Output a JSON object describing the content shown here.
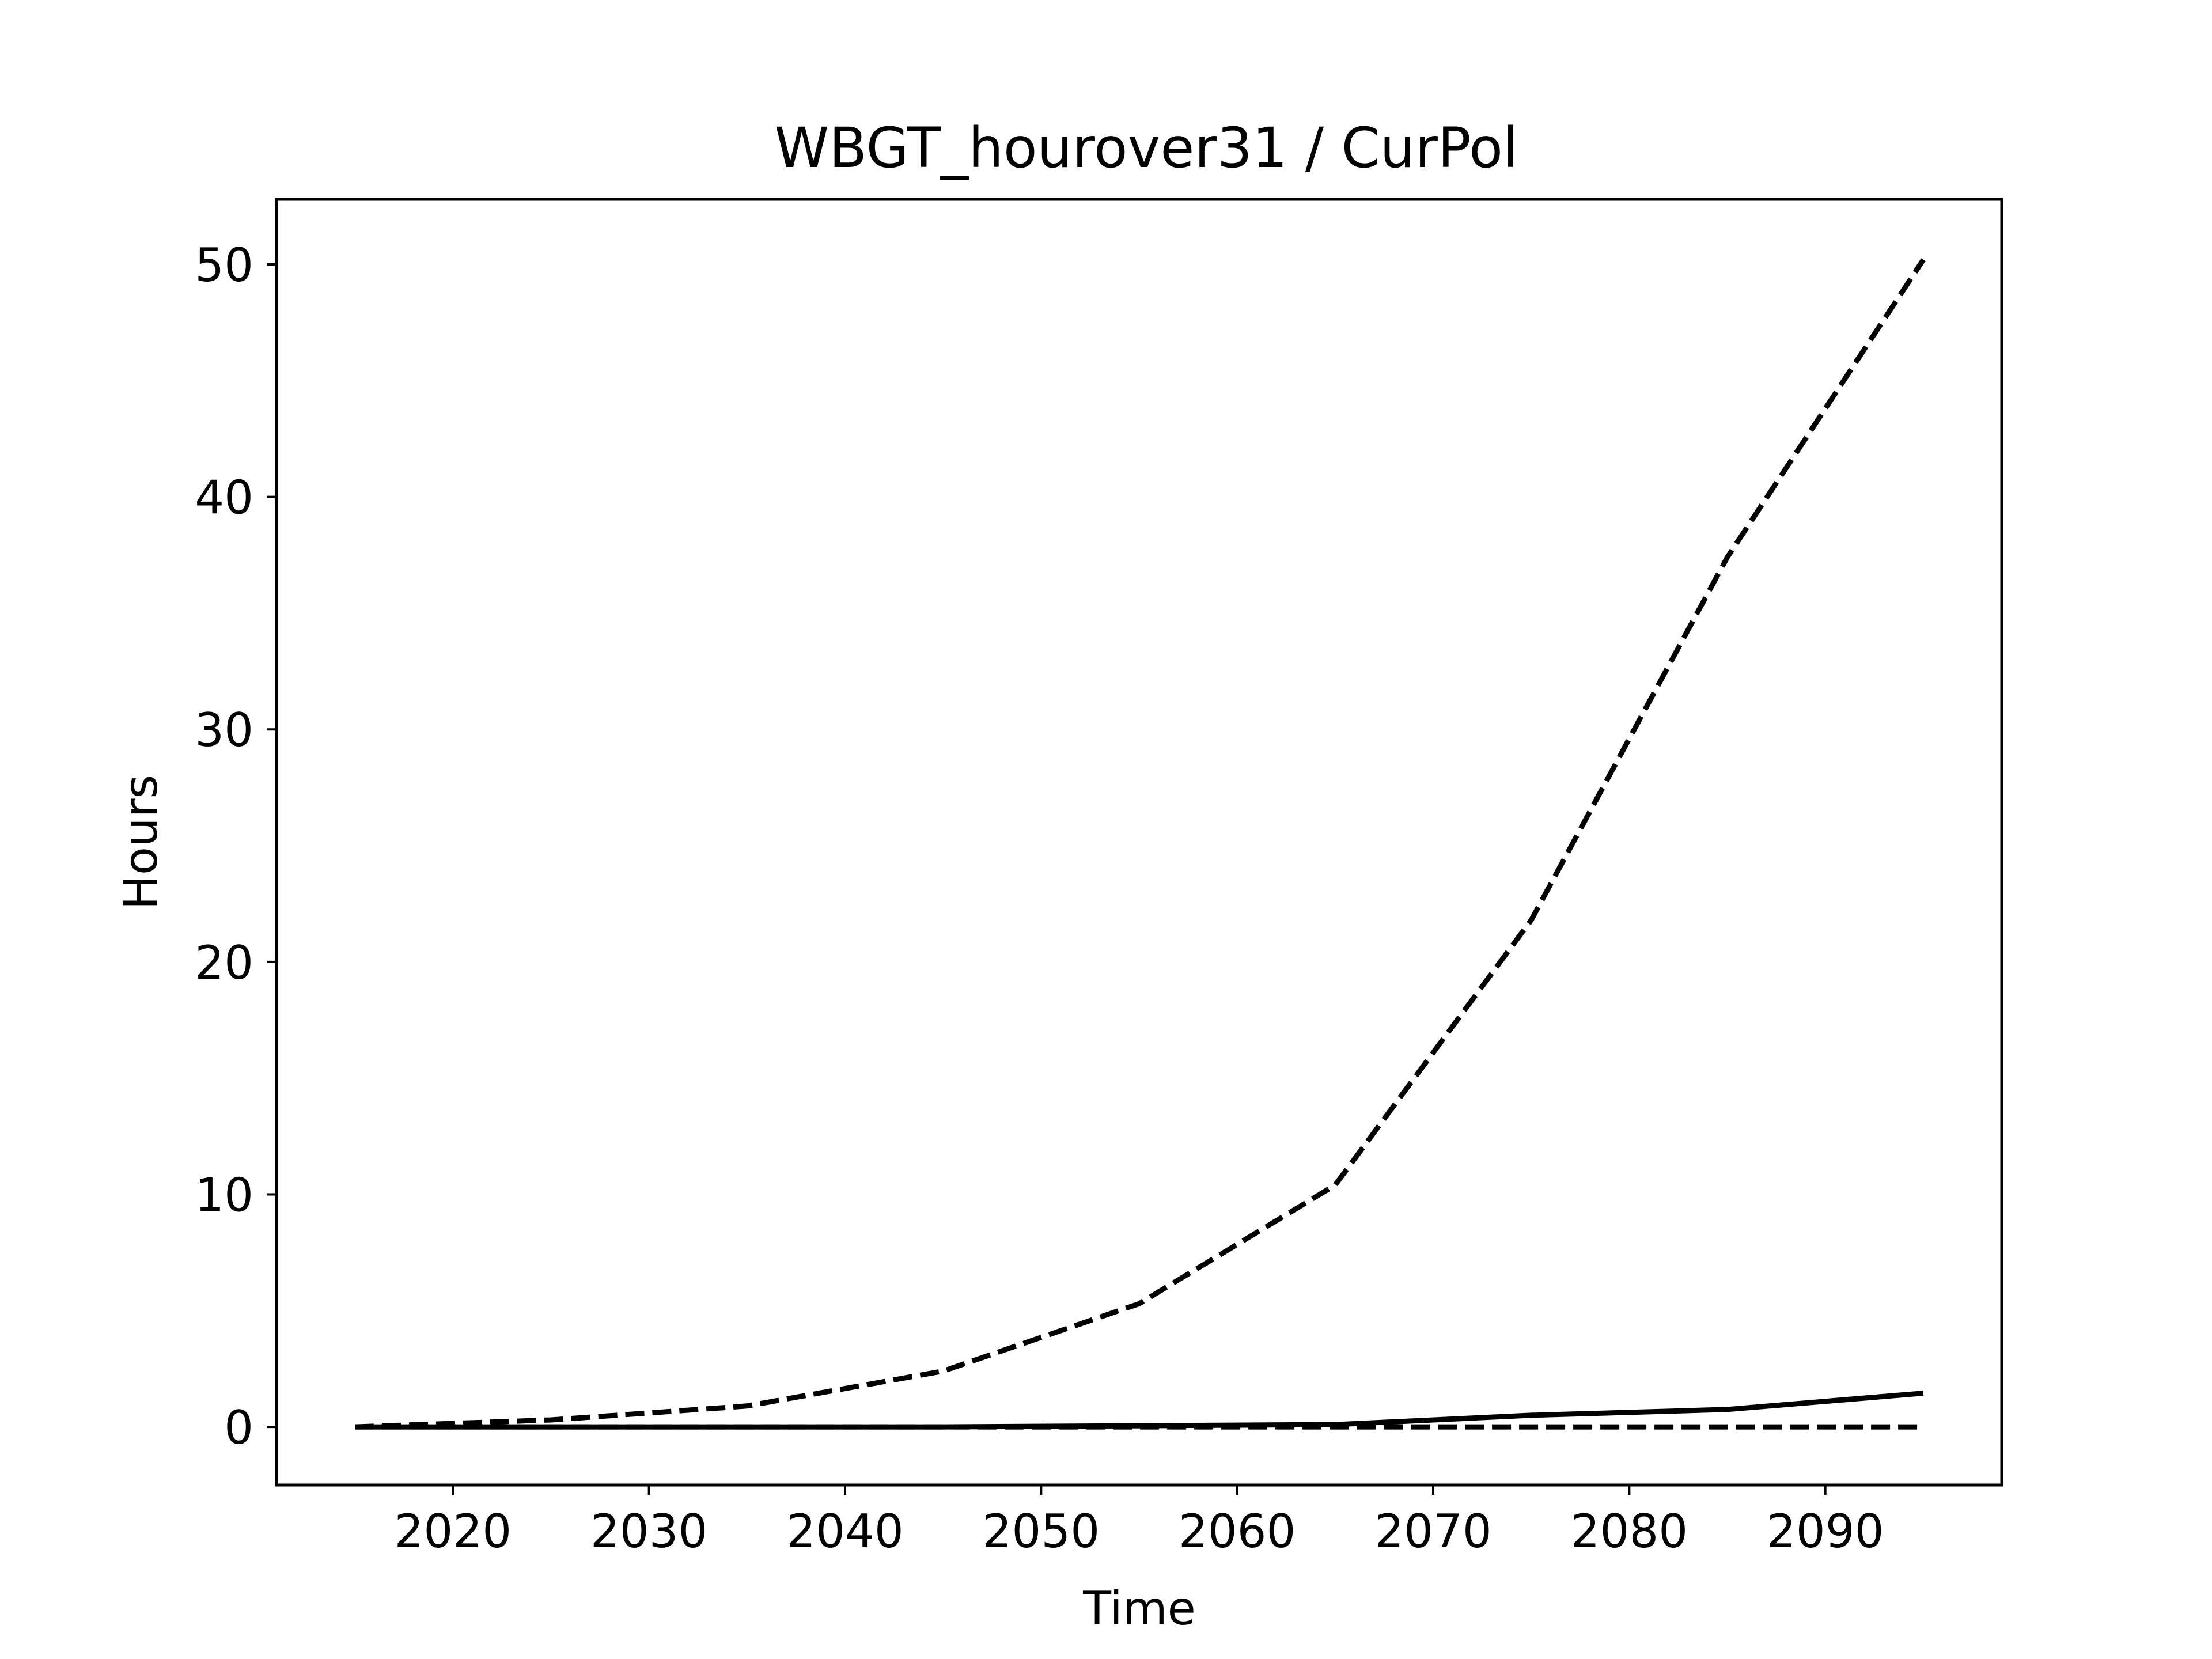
{
  "chart_data": {
    "type": "line",
    "title": "WBGT_hourover31 / CurPol",
    "xlabel": "Time",
    "ylabel": "Hours",
    "x": [
      2015,
      2025,
      2035,
      2045,
      2055,
      2065,
      2075,
      2085,
      2095
    ],
    "xlim": [
      2011,
      2099
    ],
    "ylim": [
      -2.5,
      52.8
    ],
    "xticks": [
      2020,
      2030,
      2040,
      2050,
      2060,
      2070,
      2080,
      2090
    ],
    "yticks": [
      0,
      10,
      20,
      30,
      40,
      50
    ],
    "grid": false,
    "series": [
      {
        "style": "dashed",
        "color": "#000000",
        "values": [
          0.0,
          0.3,
          0.9,
          2.4,
          5.3,
          10.4,
          21.8,
          37.4,
          50.2
        ]
      },
      {
        "style": "solid",
        "color": "#000000",
        "values": [
          0.0,
          0.0,
          0.0,
          0.0,
          0.05,
          0.1,
          0.5,
          0.75,
          1.45
        ]
      },
      {
        "style": "dashed",
        "color": "#000000",
        "values": [
          0.0,
          0.0,
          0.0,
          0.0,
          0.0,
          0.0,
          0.0,
          0.0,
          0.0
        ]
      }
    ]
  }
}
